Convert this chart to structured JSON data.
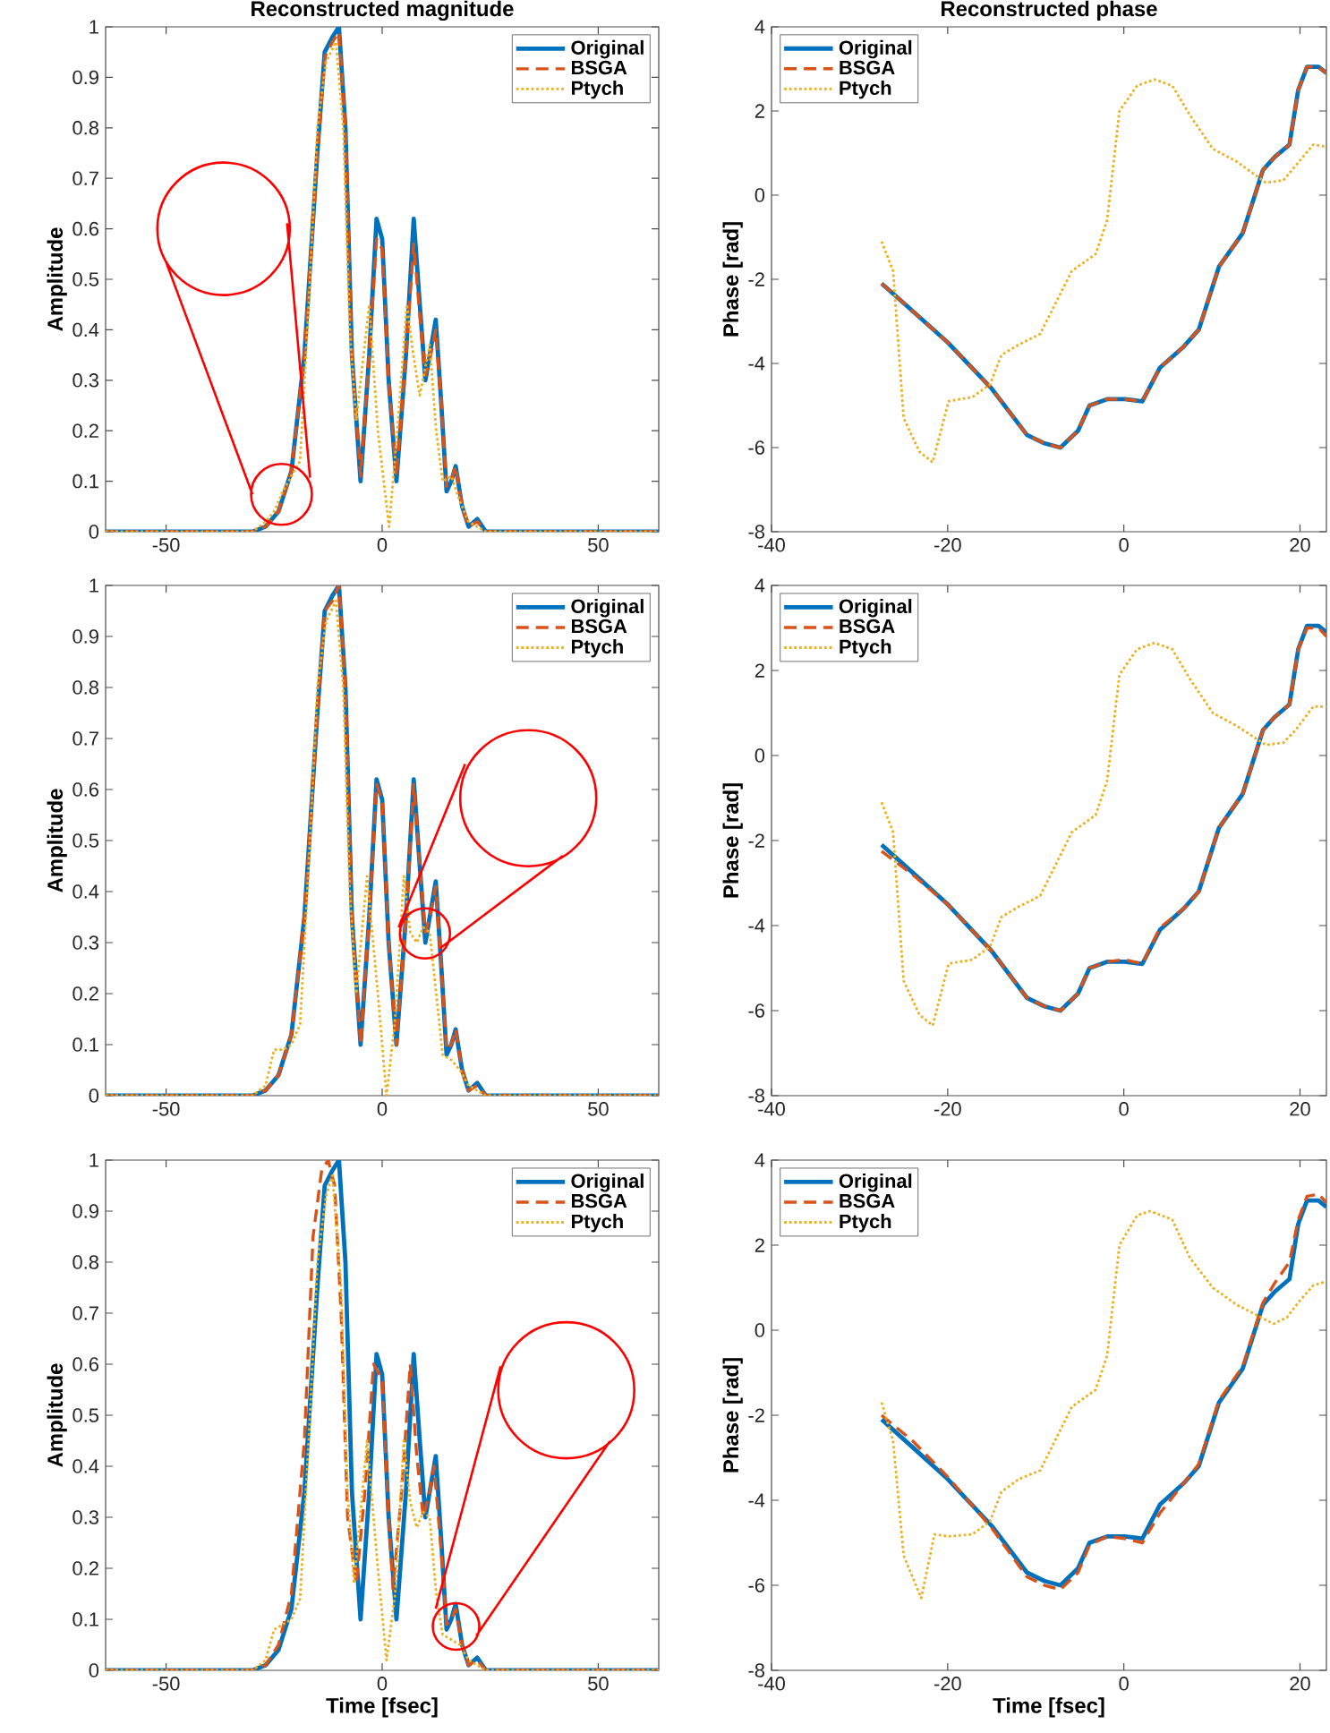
{
  "chart_data": [
    {
      "type": "line",
      "title": "Reconstructed magnitude",
      "ylabel": "Amplitude",
      "xlim": [
        -64,
        64
      ],
      "ylim": [
        0,
        1
      ],
      "xticks": [
        -50,
        0,
        50
      ],
      "yticks": [
        0,
        0.1,
        0.2,
        0.3,
        0.4,
        0.5,
        0.6,
        0.7,
        0.8,
        0.9,
        1
      ],
      "legend": "top right",
      "series": [
        {
          "name": "Original",
          "color": "#0072bd",
          "line_style": "solid",
          "x": [
            -64,
            -30,
            -27,
            -24,
            -21,
            -18,
            -15,
            -13.3,
            -11.5,
            -10,
            -8.5,
            -7,
            -5,
            -3,
            -1.3,
            0,
            1.5,
            3.3,
            5.5,
            7.3,
            8.7,
            10,
            11,
            12.4,
            13.7,
            14.9,
            16,
            17,
            18.5,
            20,
            22,
            24,
            30,
            64
          ],
          "values": [
            0,
            0,
            0.01,
            0.04,
            0.12,
            0.35,
            0.75,
            0.95,
            0.98,
            1,
            0.8,
            0.35,
            0.1,
            0.35,
            0.62,
            0.58,
            0.3,
            0.1,
            0.35,
            0.62,
            0.45,
            0.3,
            0.35,
            0.42,
            0.25,
            0.08,
            0.1,
            0.13,
            0.05,
            0.01,
            0.025,
            0,
            0,
            0
          ]
        },
        {
          "name": "BSGA",
          "color": "#d95319",
          "line_style": "dashed",
          "x": [
            -64,
            -30,
            -27,
            -24,
            -21,
            -18,
            -15,
            -13.3,
            -11.5,
            -10,
            -8.5,
            -7,
            -5,
            -3,
            -1.3,
            0,
            1.5,
            3.3,
            5.5,
            7.3,
            8.7,
            10,
            11,
            12.4,
            13.7,
            14.9,
            16,
            17,
            18.5,
            20,
            22,
            24,
            30,
            64
          ],
          "values": [
            0,
            0,
            0.01,
            0.04,
            0.12,
            0.35,
            0.75,
            0.94,
            0.97,
            0.99,
            0.8,
            0.35,
            0.11,
            0.35,
            0.58,
            0.56,
            0.3,
            0.11,
            0.35,
            0.57,
            0.43,
            0.31,
            0.34,
            0.4,
            0.25,
            0.09,
            0.1,
            0.13,
            0.05,
            0.01,
            0.02,
            0,
            0,
            0
          ]
        },
        {
          "name": "Ptych",
          "color": "#edb120",
          "line_style": "dotted",
          "x": [
            -64,
            -30,
            -27,
            -25,
            -23,
            -21,
            -19,
            -17,
            -15,
            -13,
            -10.7,
            -9,
            -7.5,
            -6,
            -3,
            -1,
            1.6,
            3.5,
            5.7,
            7.2,
            8.7,
            11,
            12.5,
            14,
            16,
            18,
            20,
            24,
            64
          ],
          "values": [
            0,
            0,
            0.02,
            0.04,
            0.08,
            0.11,
            0.14,
            0.45,
            0.8,
            0.93,
            0.97,
            0.8,
            0.4,
            0.22,
            0.45,
            0.2,
            0.01,
            0.2,
            0.45,
            0.35,
            0.27,
            0.37,
            0.2,
            0.1,
            0.11,
            0.06,
            0.02,
            0,
            0
          ]
        }
      ]
    },
    {
      "type": "line",
      "title": "Reconstructed phase",
      "ylabel": "Phase [rad]",
      "xlim": [
        -40,
        23
      ],
      "ylim": [
        -8,
        4
      ],
      "xticks": [
        -40,
        -20,
        0,
        20
      ],
      "yticks": [
        -8,
        -6,
        -4,
        -2,
        0,
        2,
        4
      ],
      "legend": "top left",
      "series": [
        {
          "name": "Original",
          "color": "#0072bd",
          "line_style": "solid",
          "x": [
            -27.5,
            -24,
            -20,
            -15,
            -11,
            -9,
            -7.2,
            -5.2,
            -3.9,
            -1.9,
            0.1,
            2.1,
            4.1,
            6.8,
            8.5,
            10.8,
            13.5,
            15.8,
            17.1,
            18.8,
            19.8,
            20.8,
            22.1,
            23
          ],
          "values": [
            -2.1,
            -2.75,
            -3.5,
            -4.6,
            -5.7,
            -5.9,
            -6.0,
            -5.6,
            -5.0,
            -4.85,
            -4.85,
            -4.9,
            -4.1,
            -3.6,
            -3.2,
            -1.7,
            -0.9,
            0.6,
            0.9,
            1.2,
            2.5,
            3.05,
            3.05,
            2.9
          ]
        },
        {
          "name": "BSGA",
          "color": "#d95319",
          "line_style": "dashed",
          "x": [
            -27.5,
            -24,
            -20,
            -15,
            -11,
            -9,
            -7.2,
            -5.2,
            -3.9,
            -1.9,
            0.1,
            2.1,
            4.1,
            6.8,
            8.5,
            10.8,
            13.5,
            15.8,
            17.1,
            18.8,
            19.8,
            20.8,
            22.1,
            23
          ],
          "values": [
            -2.1,
            -2.75,
            -3.5,
            -4.6,
            -5.7,
            -5.9,
            -6.0,
            -5.6,
            -5.0,
            -4.85,
            -4.85,
            -4.9,
            -4.1,
            -3.6,
            -3.2,
            -1.7,
            -0.9,
            0.6,
            0.9,
            1.2,
            2.5,
            3.05,
            3.05,
            2.9
          ]
        },
        {
          "name": "Ptych",
          "color": "#edb120",
          "line_style": "dotted",
          "x": [
            -27.5,
            -26.2,
            -25,
            -23.2,
            -21.7,
            -19.9,
            -17.2,
            -15.2,
            -13.9,
            -11.9,
            -9.5,
            -5.9,
            -3.2,
            -1.9,
            -0.5,
            1.5,
            3.5,
            5.5,
            7.5,
            10.1,
            12.8,
            16.1,
            18.1,
            19.5,
            21.5,
            23
          ],
          "values": [
            -1.1,
            -1.8,
            -5.3,
            -6.1,
            -6.35,
            -4.9,
            -4.8,
            -4.5,
            -3.8,
            -3.55,
            -3.3,
            -1.8,
            -1.4,
            -0.6,
            2.0,
            2.6,
            2.75,
            2.6,
            1.9,
            1.1,
            0.8,
            0.3,
            0.35,
            0.7,
            1.2,
            1.15
          ]
        }
      ]
    },
    {
      "type": "line",
      "ylabel": "Amplitude",
      "xlim": [
        -64,
        64
      ],
      "ylim": [
        0,
        1
      ],
      "xticks": [
        -50,
        0,
        50
      ],
      "yticks": [
        0,
        0.1,
        0.2,
        0.3,
        0.4,
        0.5,
        0.6,
        0.7,
        0.8,
        0.9,
        1
      ],
      "legend": "top right",
      "series": [
        {
          "name": "Original",
          "color": "#0072bd",
          "line_style": "solid",
          "x": [
            -64,
            -30,
            -27,
            -24,
            -21,
            -18,
            -15,
            -13.3,
            -11.5,
            -10,
            -8.5,
            -7,
            -5,
            -3,
            -1.3,
            0,
            1.5,
            3.3,
            5.5,
            7.3,
            8.7,
            10,
            11,
            12.4,
            13.7,
            14.9,
            16,
            17,
            18.5,
            20,
            22,
            24,
            30,
            64
          ],
          "values": [
            0,
            0,
            0.01,
            0.04,
            0.12,
            0.35,
            0.75,
            0.95,
            0.98,
            1,
            0.8,
            0.35,
            0.1,
            0.35,
            0.62,
            0.58,
            0.3,
            0.1,
            0.35,
            0.62,
            0.45,
            0.3,
            0.35,
            0.42,
            0.25,
            0.08,
            0.1,
            0.13,
            0.05,
            0.01,
            0.025,
            0,
            0,
            0
          ]
        },
        {
          "name": "BSGA",
          "color": "#d95319",
          "line_style": "dashed",
          "x": [
            -64,
            -30,
            -27,
            -24,
            -21,
            -18,
            -15,
            -13.3,
            -11.5,
            -10,
            -8.5,
            -7,
            -5,
            -3,
            -1.3,
            0,
            1.5,
            3.3,
            5.5,
            7.3,
            8.7,
            10,
            11,
            12.4,
            13.7,
            14.9,
            16,
            17,
            18.5,
            20,
            22,
            24,
            30,
            64
          ],
          "values": [
            0,
            0,
            0.01,
            0.04,
            0.12,
            0.35,
            0.75,
            0.95,
            0.97,
            1,
            0.8,
            0.35,
            0.1,
            0.35,
            0.61,
            0.58,
            0.3,
            0.1,
            0.35,
            0.61,
            0.45,
            0.32,
            0.35,
            0.41,
            0.25,
            0.09,
            0.1,
            0.13,
            0.05,
            0.01,
            0.02,
            0,
            0,
            0
          ]
        },
        {
          "name": "Ptych",
          "color": "#edb120",
          "line_style": "dotted",
          "x": [
            -64,
            -30,
            -27,
            -25,
            -23,
            -21,
            -19,
            -17,
            -15,
            -13,
            -10.7,
            -9,
            -7.5,
            -6,
            -3.5,
            -1,
            1,
            3,
            5,
            6.5,
            8,
            9.5,
            11,
            12.5,
            14,
            16,
            18,
            20,
            24,
            64
          ],
          "values": [
            0,
            0,
            0.02,
            0.09,
            0.09,
            0.1,
            0.14,
            0.45,
            0.8,
            0.93,
            0.97,
            0.8,
            0.4,
            0.2,
            0.43,
            0.2,
            0,
            0.15,
            0.43,
            0.32,
            0.3,
            0.33,
            0.32,
            0.2,
            0.08,
            0.07,
            0.05,
            0.02,
            0,
            0
          ]
        }
      ]
    },
    {
      "type": "line",
      "ylabel": "Phase [rad]",
      "xlim": [
        -40,
        23
      ],
      "ylim": [
        -8,
        4
      ],
      "xticks": [
        -40,
        -20,
        0,
        20
      ],
      "yticks": [
        -8,
        -6,
        -4,
        -2,
        0,
        2,
        4
      ],
      "legend": "top left",
      "series": [
        {
          "name": "Original",
          "color": "#0072bd",
          "line_style": "solid",
          "x": [
            -27.5,
            -24,
            -20,
            -15,
            -11,
            -9,
            -7.2,
            -5.2,
            -3.9,
            -1.9,
            0.1,
            2.1,
            4.1,
            6.8,
            8.5,
            10.8,
            13.5,
            15.8,
            17.1,
            18.8,
            19.8,
            20.8,
            22.1,
            23
          ],
          "values": [
            -2.1,
            -2.75,
            -3.5,
            -4.6,
            -5.7,
            -5.9,
            -6.0,
            -5.6,
            -5.0,
            -4.85,
            -4.85,
            -4.9,
            -4.1,
            -3.6,
            -3.2,
            -1.7,
            -0.9,
            0.6,
            0.9,
            1.2,
            2.5,
            3.05,
            3.05,
            2.9
          ]
        },
        {
          "name": "BSGA",
          "color": "#d95319",
          "line_style": "dashed",
          "x": [
            -27.5,
            -24,
            -20,
            -15,
            -11,
            -9,
            -7.2,
            -5.2,
            -3.9,
            -1.9,
            0.1,
            2.1,
            4.1,
            6.8,
            8.5,
            10.8,
            13.5,
            15.8,
            17.1,
            18.8,
            19.8,
            20.8,
            22.1,
            23
          ],
          "values": [
            -2.25,
            -2.8,
            -3.5,
            -4.6,
            -5.7,
            -5.9,
            -6.0,
            -5.6,
            -5.0,
            -4.85,
            -4.8,
            -4.9,
            -4.05,
            -3.6,
            -3.2,
            -1.7,
            -0.9,
            0.6,
            0.9,
            1.2,
            2.5,
            3.0,
            3.0,
            2.8
          ]
        },
        {
          "name": "Ptych",
          "color": "#edb120",
          "line_style": "dotted",
          "x": [
            -27.5,
            -26.2,
            -25,
            -23.2,
            -21.7,
            -19.9,
            -17.2,
            -15.2,
            -13.9,
            -11.9,
            -9.5,
            -5.9,
            -3.2,
            -1.9,
            -0.5,
            1.5,
            3.5,
            5.5,
            7.5,
            10.1,
            12.8,
            16.1,
            18.1,
            19.5,
            21.5,
            23
          ],
          "values": [
            -1.1,
            -1.8,
            -5.3,
            -6.1,
            -6.35,
            -4.9,
            -4.8,
            -4.5,
            -3.8,
            -3.55,
            -3.3,
            -1.8,
            -1.4,
            -0.6,
            1.9,
            2.5,
            2.65,
            2.5,
            1.8,
            1.0,
            0.7,
            0.25,
            0.3,
            0.6,
            1.15,
            1.15
          ]
        }
      ]
    },
    {
      "type": "line",
      "xlabel": "Time [fsec]",
      "ylabel": "Amplitude",
      "xlim": [
        -64,
        64
      ],
      "ylim": [
        0,
        1
      ],
      "xticks": [
        -50,
        0,
        50
      ],
      "yticks": [
        0,
        0.1,
        0.2,
        0.3,
        0.4,
        0.5,
        0.6,
        0.7,
        0.8,
        0.9,
        1
      ],
      "legend": "top right",
      "series": [
        {
          "name": "Original",
          "color": "#0072bd",
          "line_style": "solid",
          "x": [
            -64,
            -30,
            -27,
            -24,
            -21,
            -18,
            -15,
            -13.3,
            -11.5,
            -10,
            -8.5,
            -7,
            -5,
            -3,
            -1.3,
            0,
            1.5,
            3.3,
            5.5,
            7.3,
            8.7,
            10,
            11,
            12.4,
            13.7,
            14.9,
            16,
            17,
            18.5,
            20,
            22,
            24,
            30,
            64
          ],
          "values": [
            0,
            0,
            0.01,
            0.04,
            0.12,
            0.35,
            0.75,
            0.95,
            0.98,
            1,
            0.8,
            0.35,
            0.1,
            0.35,
            0.62,
            0.58,
            0.3,
            0.1,
            0.35,
            0.62,
            0.45,
            0.3,
            0.35,
            0.42,
            0.25,
            0.08,
            0.1,
            0.13,
            0.05,
            0.01,
            0.025,
            0,
            0,
            0
          ]
        },
        {
          "name": "BSGA",
          "color": "#d95319",
          "line_style": "dashed",
          "x": [
            -64,
            -30,
            -27,
            -24,
            -21,
            -18,
            -16,
            -14,
            -12.5,
            -11,
            -9.5,
            -8,
            -6,
            -4,
            -2,
            0,
            1.5,
            2.5,
            4.5,
            6.5,
            8,
            9.5,
            11,
            12,
            13.5,
            14.9,
            16,
            17,
            18.5,
            20,
            22,
            24,
            30,
            64
          ],
          "values": [
            0,
            0,
            0.01,
            0.05,
            0.15,
            0.45,
            0.85,
            0.98,
            1,
            0.95,
            0.7,
            0.3,
            0.17,
            0.35,
            0.6,
            0.57,
            0.3,
            0.16,
            0.35,
            0.6,
            0.42,
            0.3,
            0.35,
            0.4,
            0.25,
            0.09,
            0.1,
            0.12,
            0.05,
            0.01,
            0.02,
            0,
            0,
            0
          ]
        },
        {
          "name": "Ptych",
          "color": "#edb120",
          "line_style": "dotted",
          "x": [
            -64,
            -30,
            -27,
            -25,
            -23,
            -21,
            -19,
            -17,
            -15,
            -13,
            -11.5,
            -9.5,
            -8,
            -6.5,
            -3.5,
            -1,
            1,
            3,
            5,
            6.5,
            8,
            9.5,
            11,
            12.5,
            14,
            16,
            18,
            20,
            24,
            64
          ],
          "values": [
            0,
            0,
            0.02,
            0.08,
            0.09,
            0.1,
            0.14,
            0.45,
            0.8,
            0.93,
            0.97,
            0.75,
            0.35,
            0.17,
            0.45,
            0.2,
            0.02,
            0.15,
            0.45,
            0.33,
            0.28,
            0.31,
            0.3,
            0.15,
            0.07,
            0.06,
            0.05,
            0.02,
            0,
            0
          ]
        }
      ]
    },
    {
      "type": "line",
      "xlabel": "Time [fsec]",
      "ylabel": "Phase [rad]",
      "xlim": [
        -40,
        23
      ],
      "ylim": [
        -8,
        4
      ],
      "xticks": [
        -40,
        -20,
        0,
        20
      ],
      "yticks": [
        -8,
        -6,
        -4,
        -2,
        0,
        2,
        4
      ],
      "legend": "top left",
      "series": [
        {
          "name": "Original",
          "color": "#0072bd",
          "line_style": "solid",
          "x": [
            -27.5,
            -24,
            -20,
            -15,
            -11,
            -9,
            -7.2,
            -5.2,
            -3.9,
            -1.9,
            0.1,
            2.1,
            4.1,
            6.8,
            8.5,
            10.8,
            13.5,
            15.8,
            17.1,
            18.8,
            19.8,
            20.8,
            22.1,
            23
          ],
          "values": [
            -2.1,
            -2.75,
            -3.5,
            -4.6,
            -5.7,
            -5.9,
            -6.0,
            -5.6,
            -5.0,
            -4.85,
            -4.85,
            -4.9,
            -4.1,
            -3.6,
            -3.2,
            -1.7,
            -0.9,
            0.6,
            0.9,
            1.2,
            2.5,
            3.05,
            3.05,
            2.9
          ]
        },
        {
          "name": "BSGA",
          "color": "#d95319",
          "line_style": "dashed",
          "x": [
            -27.5,
            -24,
            -20,
            -15,
            -11,
            -9,
            -7.2,
            -5.2,
            -3.9,
            -1.9,
            0.1,
            2.1,
            4.1,
            6.8,
            8.5,
            10.8,
            13.5,
            15.8,
            17.1,
            18.8,
            19.8,
            20.8,
            22.1,
            23
          ],
          "values": [
            -2.0,
            -2.6,
            -3.45,
            -4.65,
            -5.8,
            -6.0,
            -6.1,
            -5.7,
            -5.05,
            -4.85,
            -4.9,
            -5.0,
            -4.3,
            -3.6,
            -3.15,
            -1.65,
            -0.85,
            0.65,
            1.1,
            1.6,
            2.6,
            3.15,
            3.2,
            3.0
          ]
        },
        {
          "name": "Ptych",
          "color": "#edb120",
          "line_style": "dotted",
          "x": [
            -27.5,
            -26.2,
            -25,
            -23,
            -21.5,
            -19.9,
            -17.2,
            -15.2,
            -13.9,
            -11.9,
            -9.5,
            -5.9,
            -3.2,
            -1.9,
            -0.5,
            1.5,
            3,
            5.5,
            7.5,
            10.1,
            12.8,
            17,
            18.5,
            20,
            21.5,
            23
          ],
          "values": [
            -1.7,
            -2.6,
            -5.3,
            -6.3,
            -4.8,
            -4.85,
            -4.8,
            -4.5,
            -3.8,
            -3.5,
            -3.3,
            -1.8,
            -1.4,
            -0.6,
            2.0,
            2.7,
            2.8,
            2.6,
            1.7,
            1.0,
            0.6,
            0.15,
            0.3,
            0.7,
            1.05,
            1.15
          ]
        }
      ]
    }
  ]
}
